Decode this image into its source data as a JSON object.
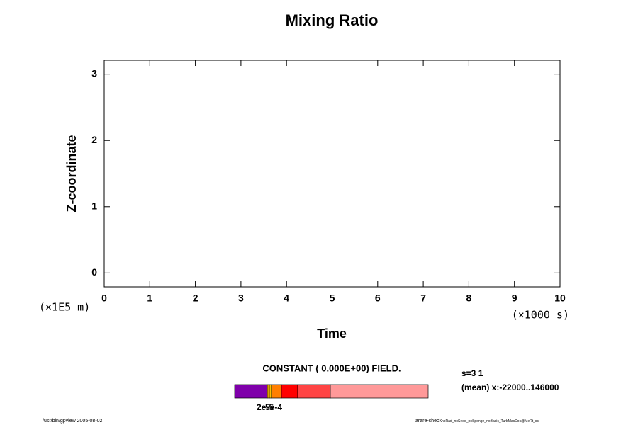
{
  "chart_data": {
    "type": "contour",
    "title": "Mixing Ratio",
    "xlabel": "Time",
    "ylabel": "Z-coordinate",
    "xunit": "(×1000 s)",
    "yunit": "(×1E5 m)",
    "xlim": [
      0,
      10
    ],
    "xticks": [
      0,
      1,
      2,
      3,
      4,
      5,
      6,
      7,
      8,
      9,
      10
    ],
    "ylim": [
      -0.21,
      3.21
    ],
    "yticks": [
      0,
      1,
      2,
      3
    ],
    "annotation": "CONSTANT ( 0.000E+00) FIELD.",
    "info": [
      "s=3 1",
      "(mean) x:-22000..146000"
    ],
    "colorbar": {
      "colors": [
        "#7f00aa",
        "#e0a000",
        "#ffc000",
        "#ff7f00",
        "#ff0000",
        "#ff4444",
        "#ff9999"
      ],
      "labels": [
        "2e-5",
        "5e-4"
      ]
    },
    "footer_left": "/usr/bin/gpview 2005-08-02",
    "footer_right": "arare-check",
    "footer_right_sub": "noRad_noSeed_noSponge_noBasic_TurbMacDoc@MeRt_sc"
  }
}
